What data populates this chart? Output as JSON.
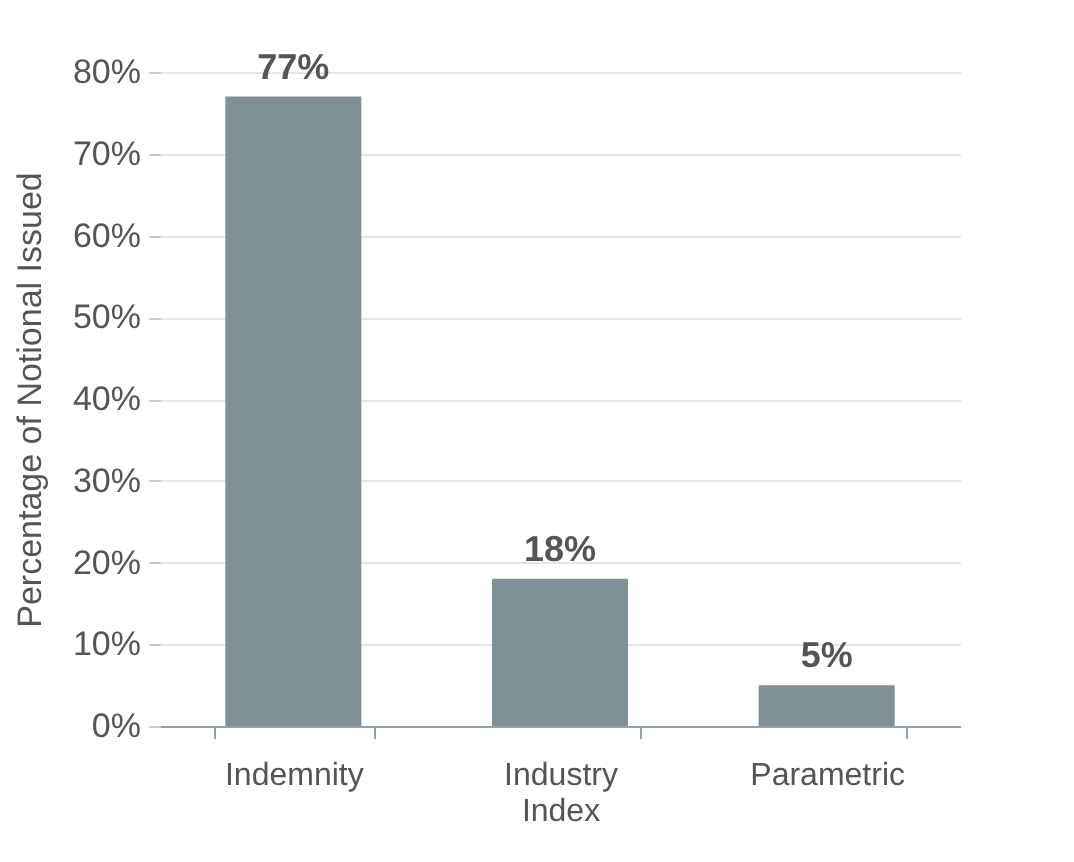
{
  "chart_data": {
    "type": "bar",
    "ylabel": "Percentage of Notional Issued",
    "categories": [
      "Indemnity",
      "Industry Index",
      "Parametric"
    ],
    "values": [
      77,
      18,
      5
    ],
    "color": "#7f9196",
    "value_labels": [
      "77%",
      "18%",
      "5%"
    ],
    "ylim": [
      0,
      80
    ],
    "yticks": [
      {
        "value": 0,
        "label": "0%"
      },
      {
        "value": 10,
        "label": "10%"
      },
      {
        "value": 20,
        "label": "20%"
      },
      {
        "value": 30,
        "label": "30%"
      },
      {
        "value": 40,
        "label": "40%"
      },
      {
        "value": 50,
        "label": "50%"
      },
      {
        "value": 60,
        "label": "60%"
      },
      {
        "value": 70,
        "label": "70%"
      },
      {
        "value": 80,
        "label": "80%"
      }
    ],
    "grid": "y"
  }
}
